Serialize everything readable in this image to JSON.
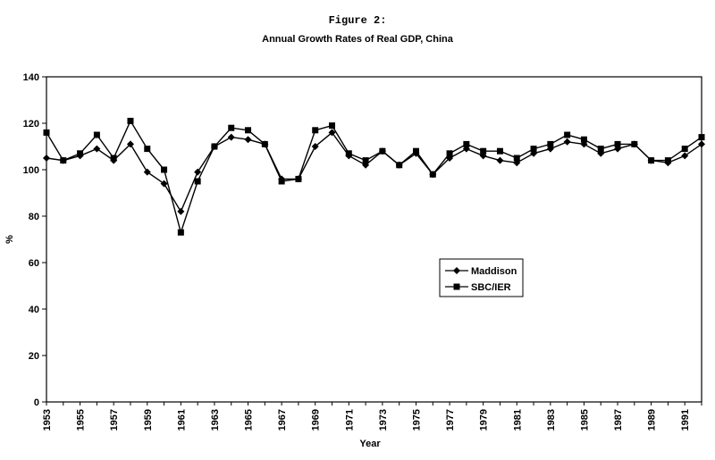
{
  "figure_label": "Figure 2:",
  "chart_data": {
    "type": "line",
    "title": "Annual Growth Rates of Real GDP, China",
    "xlabel": "Year",
    "ylabel": "%",
    "ylim": [
      0,
      140
    ],
    "yticks": [
      0,
      20,
      40,
      60,
      80,
      100,
      120,
      140
    ],
    "xlim": [
      1953,
      1992
    ],
    "xtick_labels": [
      "1953",
      "1955",
      "1957",
      "1959",
      "1961",
      "1963",
      "1965",
      "1967",
      "1969",
      "1971",
      "1973",
      "1975",
      "1977",
      "1979",
      "1981",
      "1983",
      "1985",
      "1987",
      "1989",
      "1991"
    ],
    "grid": false,
    "legend_position": "center-right",
    "x": [
      1953,
      1954,
      1955,
      1956,
      1957,
      1958,
      1959,
      1960,
      1961,
      1962,
      1963,
      1964,
      1965,
      1966,
      1967,
      1968,
      1969,
      1970,
      1971,
      1972,
      1973,
      1974,
      1975,
      1976,
      1977,
      1978,
      1979,
      1980,
      1981,
      1982,
      1983,
      1984,
      1985,
      1986,
      1987,
      1988,
      1989,
      1990,
      1991,
      1992
    ],
    "series": [
      {
        "name": "Maddison",
        "marker": "diamond",
        "values": [
          105,
          104,
          106,
          109,
          104,
          111,
          99,
          94,
          82,
          99,
          110,
          114,
          113,
          111,
          96,
          96,
          110,
          116,
          106,
          102,
          108,
          102,
          107,
          98,
          105,
          109,
          106,
          104,
          103,
          107,
          109,
          112,
          111,
          107,
          109,
          111,
          104,
          103,
          106,
          111
        ]
      },
      {
        "name": "SBC/IER",
        "marker": "square",
        "values": [
          116,
          104,
          107,
          115,
          105,
          121,
          109,
          100,
          73,
          95,
          110,
          118,
          117,
          111,
          95,
          96,
          117,
          119,
          107,
          104,
          108,
          102,
          108,
          98,
          107,
          111,
          108,
          108,
          105,
          109,
          111,
          115,
          113,
          109,
          111,
          111,
          104,
          104,
          109,
          114
        ]
      }
    ]
  }
}
